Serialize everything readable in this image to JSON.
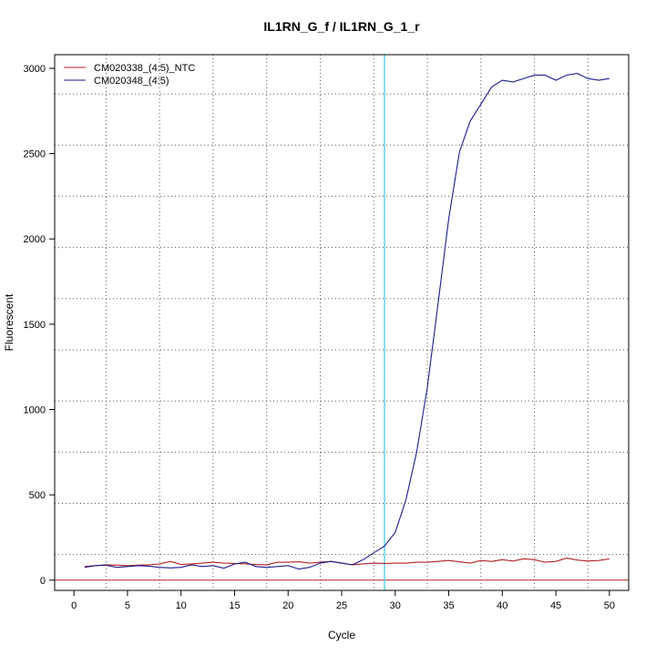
{
  "chart_data": {
    "type": "line",
    "title": "IL1RN_G_f / IL1RN_G_1_r",
    "xlabel": "Cycle",
    "ylabel": "Fluorescent",
    "xlim": [
      -1.8,
      51.8
    ],
    "ylim": [
      -60,
      3080
    ],
    "x_ticks": [
      0,
      5,
      10,
      15,
      20,
      25,
      30,
      35,
      40,
      45,
      50
    ],
    "y_ticks": [
      0,
      500,
      1000,
      1500,
      2000,
      2500,
      3000
    ],
    "grid": true,
    "grid_x": [
      3,
      8,
      13,
      18,
      23,
      28,
      33,
      38,
      43,
      48
    ],
    "grid_y": [
      150,
      450,
      750,
      1050,
      1350,
      1650,
      1950,
      2250,
      2550,
      2850
    ],
    "threshold_cycle": 29,
    "baseline": 0,
    "legend": {
      "placement": "top-left"
    },
    "colors": {
      "ntc": "#b22222",
      "sample": "#1c1c8c",
      "threshold": "#5fd3e8",
      "baseline": "#b22222"
    },
    "x": [
      1,
      2,
      3,
      4,
      5,
      6,
      7,
      8,
      9,
      10,
      11,
      12,
      13,
      14,
      15,
      16,
      17,
      18,
      19,
      20,
      21,
      22,
      23,
      24,
      25,
      26,
      27,
      28,
      29,
      30,
      31,
      32,
      33,
      34,
      35,
      36,
      37,
      38,
      39,
      40,
      41,
      42,
      43,
      44,
      45,
      46,
      47,
      48,
      49,
      50
    ],
    "series": [
      {
        "name": "CM020338_(4:5)_NTC",
        "color": "#b22222",
        "values": [
          80,
          85,
          90,
          88,
          85,
          88,
          90,
          95,
          110,
          92,
          95,
          100,
          105,
          100,
          98,
          95,
          92,
          90,
          105,
          105,
          108,
          100,
          105,
          110,
          100,
          90,
          95,
          100,
          98,
          100,
          100,
          105,
          105,
          110,
          115,
          108,
          100,
          115,
          110,
          120,
          112,
          125,
          120,
          105,
          110,
          130,
          118,
          112,
          115,
          125
        ]
      },
      {
        "name": "CM020348_(4:5)",
        "color": "#1c1c8c",
        "values": [
          75,
          85,
          88,
          75,
          80,
          85,
          82,
          75,
          72,
          75,
          90,
          80,
          85,
          70,
          95,
          105,
          80,
          75,
          80,
          85,
          65,
          75,
          100,
          110,
          100,
          90,
          120,
          160,
          200,
          280,
          470,
          750,
          1130,
          1620,
          2120,
          2510,
          2690,
          2790,
          2890,
          2930,
          2920,
          2940,
          2960,
          2960,
          2930,
          2960,
          2970,
          2940,
          2930,
          2940
        ]
      }
    ]
  }
}
